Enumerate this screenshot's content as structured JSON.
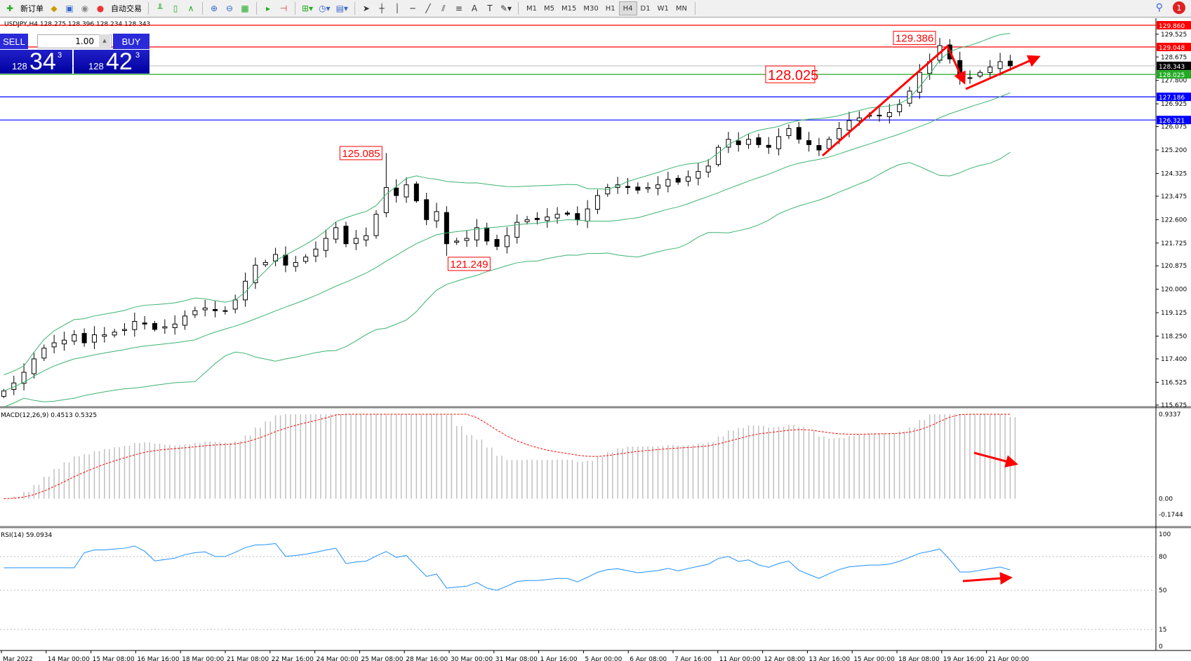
{
  "toolbar": {
    "new_order": "新订单",
    "auto_trading": "自动交易",
    "timeframes": [
      "M1",
      "M5",
      "M15",
      "M30",
      "H1",
      "H4",
      "D1",
      "W1",
      "MN"
    ],
    "active_timeframe": "H4",
    "notification_count": "1"
  },
  "chart": {
    "header": "USDJPY,H4  128.275 128.396 128.234 128.343"
  },
  "one_click": {
    "sell": "SELL",
    "buy": "BUY",
    "lot": "1.00",
    "bid_big": "128",
    "bid_main": "34",
    "bid_small": "3",
    "ask_big": "128",
    "ask_main": "42",
    "ask_small": "3"
  },
  "chart_data": {
    "type": "candlestick",
    "symbol": "USDJPY",
    "timeframe": "H4",
    "ylim": [
      115.675,
      129.86
    ],
    "price_ticks": [
      "129.525",
      "128.675",
      "127.800",
      "126.925",
      "126.075",
      "125.200",
      "124.325",
      "123.475",
      "122.600",
      "121.725",
      "120.875",
      "120.000",
      "119.125",
      "118.250",
      "117.400",
      "116.525",
      "115.675"
    ],
    "levels": [
      {
        "price": 129.86,
        "label": "129.860",
        "color": "#ff0000"
      },
      {
        "price": 129.048,
        "label": "129.048",
        "color": "#ff0000"
      },
      {
        "price": 128.343,
        "label": "128.343",
        "color": "#000000",
        "line": "#c0c0c0"
      },
      {
        "price": 128.025,
        "label": "128.025",
        "color": "#22aa22"
      },
      {
        "price": 127.186,
        "label": "127.186",
        "color": "#0000ff"
      },
      {
        "price": 126.321,
        "label": "126.321",
        "color": "#0000ff"
      }
    ],
    "closes": [
      116.2,
      116.5,
      116.9,
      117.4,
      117.8,
      118.0,
      118.1,
      118.3,
      118.0,
      118.3,
      118.3,
      118.4,
      118.5,
      118.8,
      118.7,
      118.5,
      118.6,
      118.7,
      119.0,
      119.2,
      119.3,
      119.2,
      119.2,
      119.6,
      120.3,
      120.9,
      121.0,
      121.3,
      120.9,
      121.0,
      121.2,
      121.5,
      121.9,
      122.3,
      121.7,
      121.9,
      122.0,
      122.8,
      123.8,
      123.5,
      123.9,
      123.3,
      122.6,
      122.9,
      121.7,
      121.8,
      121.9,
      122.3,
      121.8,
      121.6,
      122.0,
      122.5,
      122.6,
      122.6,
      122.7,
      122.8,
      122.8,
      122.6,
      123.0,
      123.5,
      123.8,
      123.9,
      123.8,
      123.7,
      123.8,
      123.9,
      124.1,
      124.0,
      124.2,
      124.4,
      124.6,
      125.3,
      125.6,
      125.4,
      125.6,
      125.4,
      125.3,
      125.7,
      126.0,
      125.6,
      125.4,
      125.2,
      125.6,
      126.0,
      126.3,
      126.4,
      126.5,
      126.5,
      126.6,
      126.9,
      127.4,
      128.1,
      128.5,
      129.1,
      128.6,
      127.9,
      127.9,
      128.1,
      128.3,
      128.5,
      128.343
    ],
    "price_labels": [
      {
        "index": 38,
        "price": 125.085,
        "label": "125.085",
        "side": "high"
      },
      {
        "index": 44,
        "price": 121.249,
        "label": "121.249",
        "side": "low"
      },
      {
        "index": 93,
        "price": 129.386,
        "label": "129.386",
        "side": "high"
      },
      {
        "index": 81,
        "price": 128.025,
        "label": "128.025",
        "side": "level"
      }
    ],
    "indicators": {
      "bollinger": {
        "period": 20,
        "deviation": 2,
        "color": "#3cb371"
      },
      "macd": {
        "label": "MACD(12,26,9) 0.4513 0.5325",
        "ticks": [
          "0.9337",
          "0.00",
          "-0.1744"
        ],
        "range": [
          -0.1744,
          0.9337
        ],
        "hist_color": "#c0c0c0",
        "signal_color": "#ff0000"
      },
      "rsi": {
        "label": "RSI(14) 59.0934",
        "ticks": [
          "100",
          "80",
          "50",
          "15",
          "0"
        ],
        "levels": [
          80,
          50,
          15
        ],
        "color": "#1e90ff"
      }
    },
    "time_labels": [
      "Mar 2022",
      "14 Mar 00:00",
      "15 Mar 08:00",
      "16 Mar 16:00",
      "18 Mar 00:00",
      "21 Mar 08:00",
      "22 Mar 16:00",
      "24 Mar 00:00",
      "25 Mar 08:00",
      "28 Mar 16:00",
      "30 Mar 00:00",
      "31 Mar 08:00",
      "1 Apr 16:00",
      "5 Apr 00:00",
      "6 Apr 08:00",
      "7 Apr 16:00",
      "11 Apr 00:00",
      "12 Apr 08:00",
      "13 Apr 16:00",
      "15 Apr 00:00",
      "18 Apr 08:00",
      "19 Apr 16:00",
      "21 Apr 00:00"
    ],
    "arrow_color": "#ff0000"
  }
}
